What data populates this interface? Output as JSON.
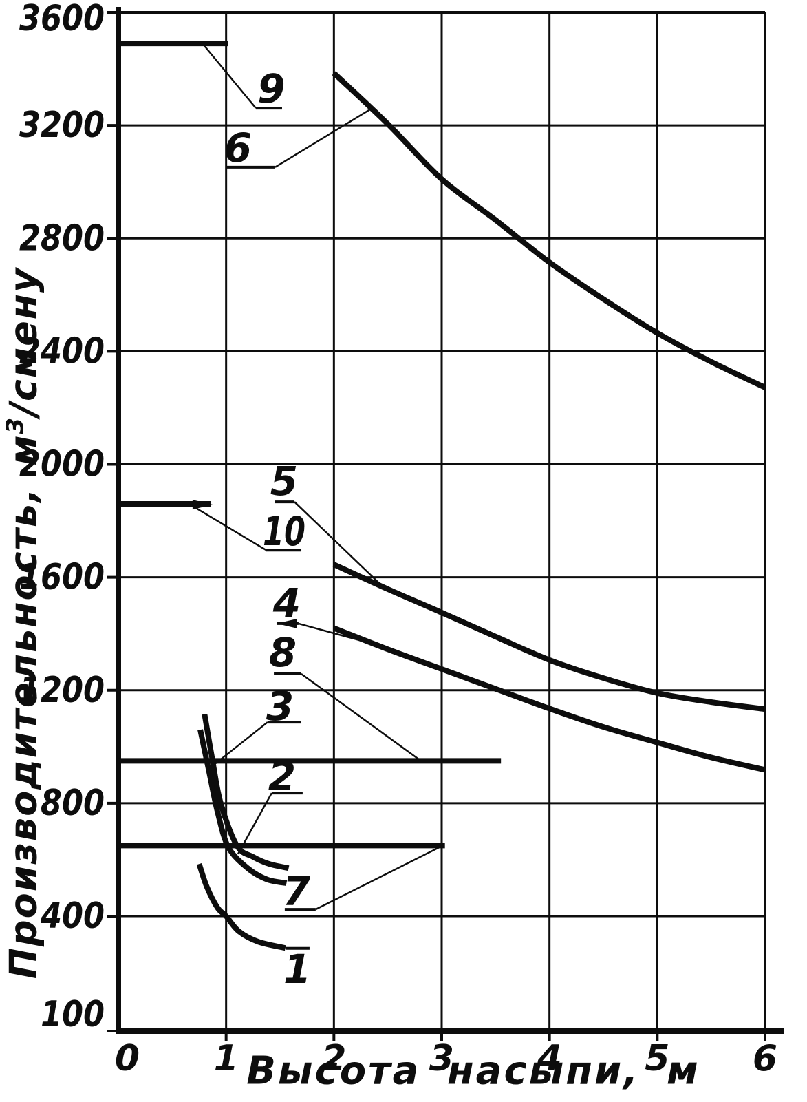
{
  "figure": {
    "background": "#ffffff",
    "ink": "#0d0d0d"
  },
  "chart_data": {
    "type": "line",
    "title": "",
    "xlabel": "Высота насыпи, м",
    "ylabel": "Производительность, м³/смену",
    "ylabel_parts": {
      "pre": "Производительность, м",
      "sup": "3",
      "post": "/смену"
    },
    "xlim": [
      0,
      6
    ],
    "ylim": [
      100,
      3600
    ],
    "grid": true,
    "legend": "numbered curve labels with leader lines",
    "x_ticks": [
      0,
      1,
      2,
      3,
      4,
      5,
      6
    ],
    "y_ticks": [
      100,
      400,
      800,
      1200,
      1600,
      2000,
      2400,
      2800,
      3200,
      3600
    ],
    "series": [
      {
        "name": "1",
        "points": [
          [
            0.75,
            585
          ],
          [
            0.82,
            505
          ],
          [
            0.92,
            430
          ],
          [
            1.0,
            400
          ],
          [
            1.12,
            360
          ],
          [
            1.3,
            333
          ],
          [
            1.55,
            317
          ]
        ]
      },
      {
        "name": "2",
        "points": [
          [
            0.76,
            1060
          ],
          [
            0.84,
            915
          ],
          [
            0.92,
            770
          ],
          [
            1.02,
            645
          ],
          [
            1.2,
            570
          ],
          [
            1.38,
            530
          ],
          [
            1.56,
            517
          ]
        ]
      },
      {
        "name": "3",
        "points": [
          [
            0.8,
            1115
          ],
          [
            0.87,
            960
          ],
          [
            0.95,
            800
          ],
          [
            1.1,
            650
          ],
          [
            1.25,
            610
          ],
          [
            1.4,
            585
          ],
          [
            1.58,
            570
          ]
        ]
      },
      {
        "name": "4",
        "points": [
          [
            2,
            1420
          ],
          [
            2.5,
            1345
          ],
          [
            3,
            1275
          ],
          [
            3.5,
            1205
          ],
          [
            4,
            1135
          ],
          [
            4.5,
            1070
          ],
          [
            5,
            1015
          ],
          [
            5.5,
            962
          ],
          [
            6,
            918
          ]
        ]
      },
      {
        "name": "5",
        "points": [
          [
            2,
            1645
          ],
          [
            2.5,
            1558
          ],
          [
            3,
            1475
          ],
          [
            3.5,
            1390
          ],
          [
            4,
            1307
          ],
          [
            4.5,
            1243
          ],
          [
            5,
            1190
          ],
          [
            5.5,
            1158
          ],
          [
            6,
            1133
          ]
        ]
      },
      {
        "name": "6",
        "points": [
          [
            2,
            3385
          ],
          [
            2.5,
            3205
          ],
          [
            3,
            3010
          ],
          [
            3.5,
            2865
          ],
          [
            4,
            2715
          ],
          [
            4.5,
            2585
          ],
          [
            5,
            2465
          ],
          [
            5.5,
            2363
          ],
          [
            6,
            2272
          ]
        ]
      },
      {
        "name": "7",
        "points": [
          [
            0,
            650
          ],
          [
            3.03,
            650
          ]
        ]
      },
      {
        "name": "8",
        "points": [
          [
            0,
            950
          ],
          [
            3.55,
            950
          ]
        ]
      },
      {
        "name": "9",
        "points": [
          [
            0,
            3490
          ],
          [
            1.02,
            3490
          ]
        ]
      },
      {
        "name": "10",
        "points": [
          [
            0,
            1860
          ],
          [
            0.86,
            1860
          ]
        ]
      }
    ],
    "annotations": [
      {
        "label": "9",
        "digit": [
          1.42,
          3330
        ],
        "line": [
          [
            1.276,
            3261
          ],
          [
            1.519,
            3261
          ]
        ],
        "leader": [
          [
            1.276,
            3261
          ],
          [
            0.78,
            3490
          ]
        ]
      },
      {
        "label": "6",
        "digit": [
          1.11,
          3120
        ],
        "line": [
          [
            0.997,
            3052
          ],
          [
            1.455,
            3052
          ]
        ],
        "leader": [
          [
            1.455,
            3052
          ],
          [
            2.36,
            3262
          ]
        ]
      },
      {
        "label": "5",
        "digit": [
          1.538,
          1940
        ],
        "line": [
          [
            1.449,
            1867
          ],
          [
            1.634,
            1867
          ]
        ],
        "leader": [
          [
            1.634,
            1867
          ],
          [
            2.45,
            1568
          ]
        ]
      },
      {
        "label": "10",
        "digit": [
          1.538,
          1762
        ],
        "line": [
          [
            1.372,
            1696
          ],
          [
            1.698,
            1696
          ]
        ],
        "leader": [
          [
            1.372,
            1696
          ],
          [
            0.72,
            1845
          ]
        ],
        "arrowhead": [
          0.88,
          1857,
          0
        ]
      },
      {
        "label": "4",
        "digit": [
          1.563,
          1509
        ],
        "line": [
          [
            1.468,
            1436
          ],
          [
            1.672,
            1436
          ]
        ],
        "leader": [
          [
            1.672,
            1436
          ],
          [
            2.42,
            1358
          ]
        ],
        "arrowhead": [
          1.468,
          1436,
          180
        ]
      },
      {
        "label": "8",
        "digit": [
          1.525,
          1333
        ],
        "line": [
          [
            1.443,
            1258
          ],
          [
            1.697,
            1258
          ]
        ],
        "leader": [
          [
            1.697,
            1258
          ],
          [
            2.8,
            952
          ]
        ]
      },
      {
        "label": "3",
        "digit": [
          1.5,
          1143
        ],
        "line": [
          [
            1.385,
            1087
          ],
          [
            1.697,
            1087
          ]
        ],
        "leader": [
          [
            1.385,
            1087
          ],
          [
            0.9,
            940
          ]
        ]
      },
      {
        "label": "2",
        "digit": [
          1.519,
          895
        ],
        "line": [
          [
            1.423,
            836
          ],
          [
            1.71,
            836
          ]
        ],
        "leader": [
          [
            1.423,
            836
          ],
          [
            1.11,
            620
          ]
        ]
      },
      {
        "label": "7",
        "digit": [
          1.653,
          488
        ],
        "line": [
          [
            1.544,
            424
          ],
          [
            1.831,
            424
          ]
        ],
        "leader": [
          [
            1.831,
            424
          ],
          [
            3.0,
            648
          ]
        ]
      },
      {
        "label": "1",
        "digit": [
          1.66,
          262
        ],
        "line": [
          [
            1.557,
            316
          ],
          [
            1.774,
            316
          ]
        ],
        "leader": null
      }
    ]
  }
}
